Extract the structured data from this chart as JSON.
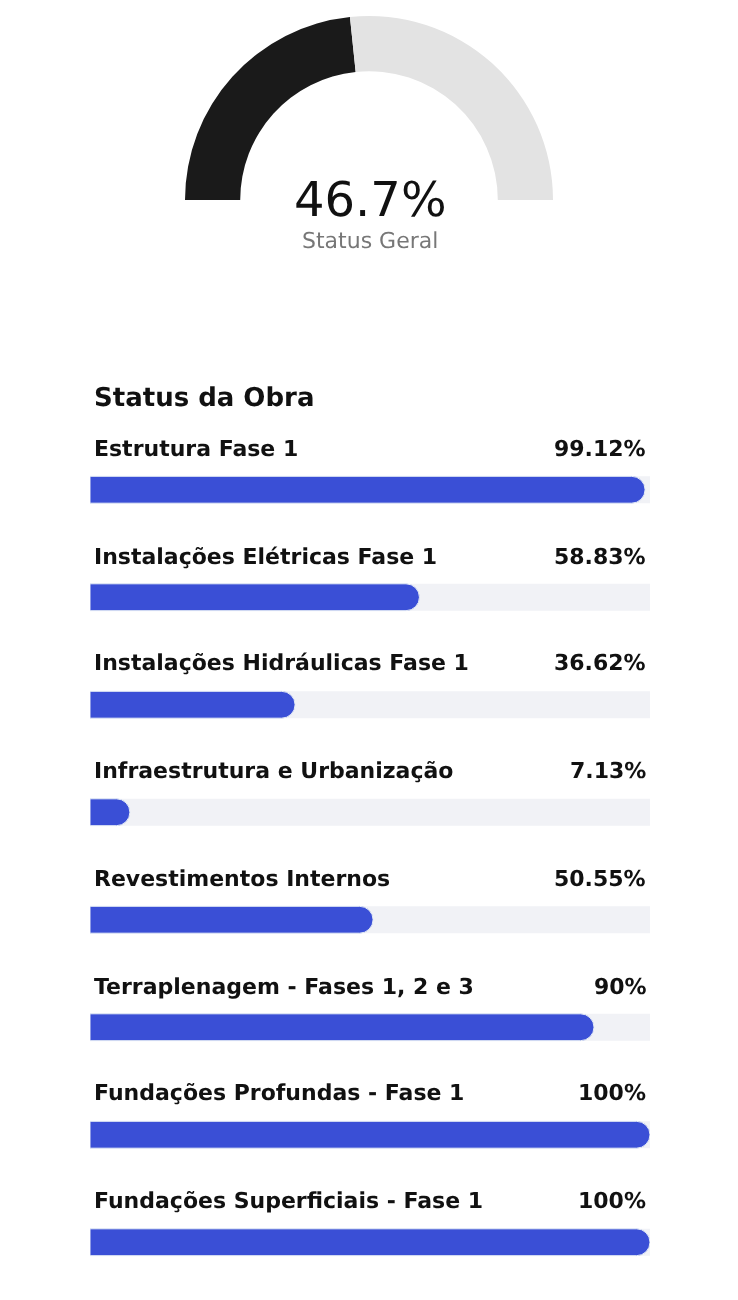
{
  "chart_data": [
    {
      "type": "donut",
      "categories": [
        null,
        null
      ],
      "values": [
        46.7,
        53.3
      ],
      "colors": [
        "#1a1a1a",
        "#e3e3e3"
      ],
      "annotations": [
        "46.7%",
        "Status Geral"
      ]
    },
    {
      "type": "bar",
      "orientation": "horizontal",
      "title": "Status da Obra",
      "categories": [
        "Estrutura Fase 1",
        "Instalações Elétricas Fase 1",
        "Instalações Hidráulicas Fase 1",
        "Infraestrutura e Urbanização",
        "Revestimentos Internos",
        "Terraplenagem - Fases 1, 2 e 3",
        "Fundações Profundas - Fase 1",
        "Fundações Superficiais - Fase 1"
      ],
      "values": [
        99.12,
        58.83,
        36.62,
        7.13,
        50.55,
        90,
        100,
        100
      ],
      "value_labels": [
        "99.12%",
        "58.83%",
        "36.62%",
        "7.13%",
        "50.55%",
        "90%",
        "100%",
        "100%"
      ],
      "color": "#3a4fd6",
      "xlim": [
        0,
        100
      ],
      "tick_labels": false,
      "grid": false,
      "legend": false
    }
  ]
}
